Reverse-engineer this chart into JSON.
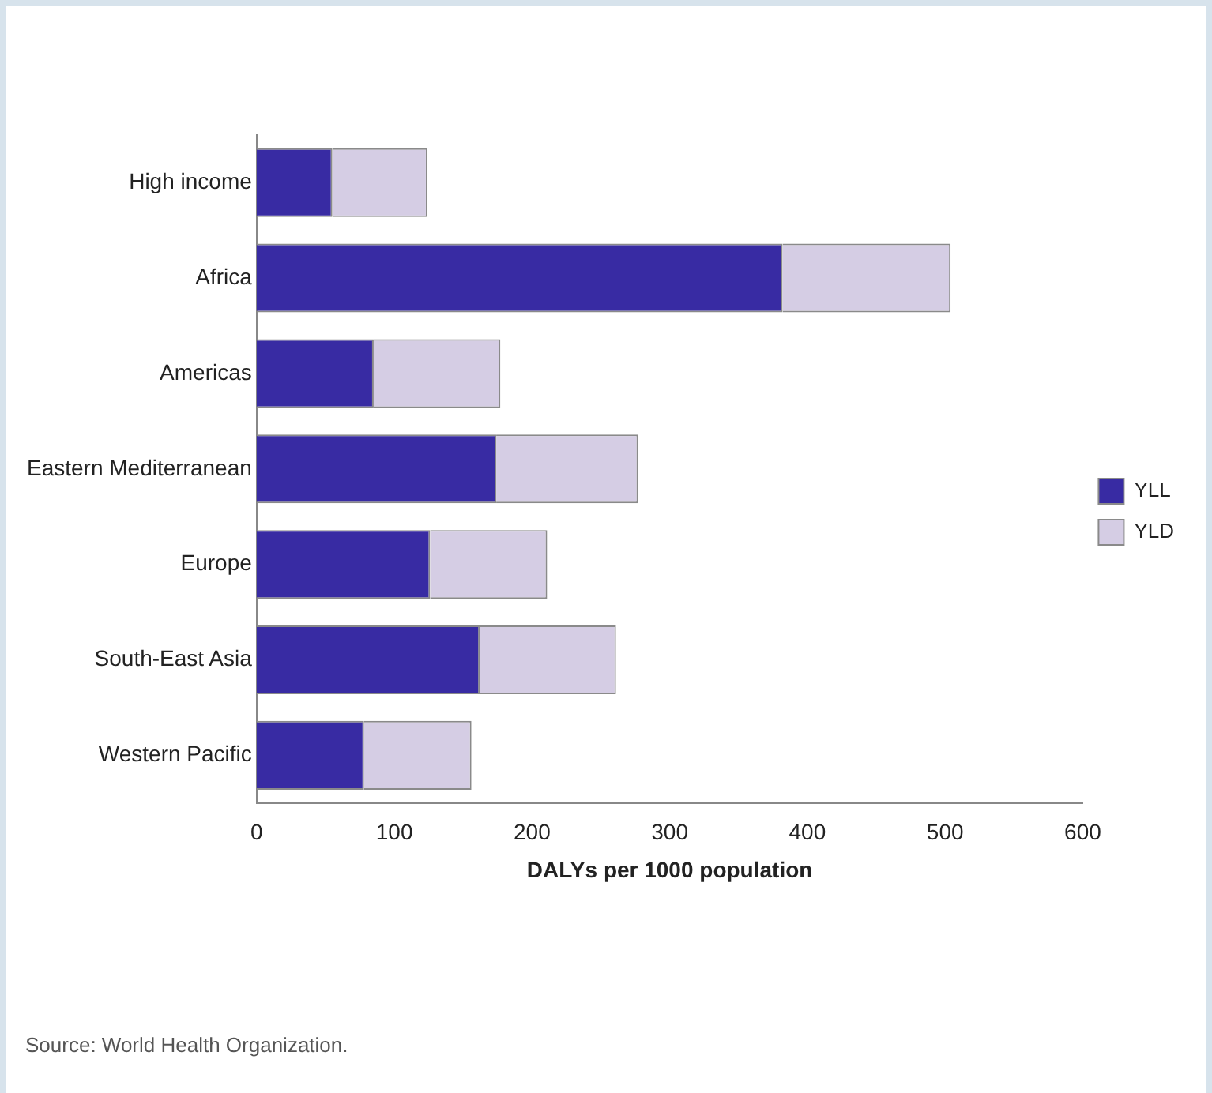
{
  "chart_data": {
    "type": "bar",
    "orientation": "horizontal",
    "stacked": true,
    "categories": [
      "High income",
      "Africa",
      "Americas",
      "Eastern Mediterranean",
      "Europe",
      "South-East Asia",
      "Western Pacific"
    ],
    "series": [
      {
        "name": "YLL",
        "color": "#382ba3",
        "values": [
          55,
          382,
          85,
          174,
          126,
          162,
          78
        ]
      },
      {
        "name": "YLD",
        "color": "#d5cde4",
        "values": [
          69,
          122,
          92,
          103,
          85,
          99,
          78
        ]
      }
    ],
    "xlabel": "DALYs per 1000 population",
    "xlim": [
      0,
      600
    ],
    "xticks": [
      0,
      100,
      200,
      300,
      400,
      500,
      600
    ],
    "grid": false,
    "legend": "right",
    "annotations": [
      "Source: World Health Organization."
    ]
  }
}
